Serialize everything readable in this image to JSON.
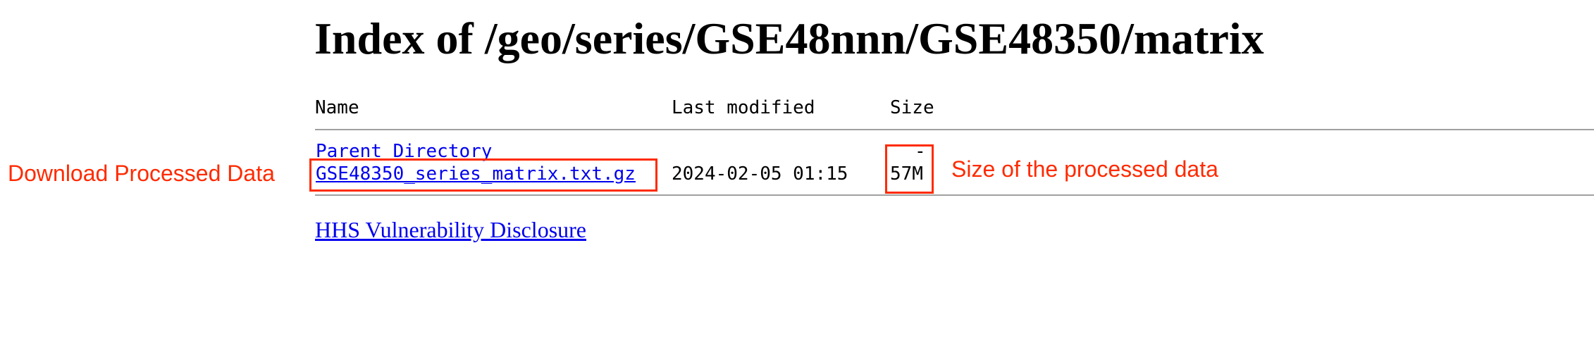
{
  "page": {
    "title": "Index of /geo/series/GSE48nnn/GSE48350/matrix"
  },
  "table": {
    "headers": {
      "name": "Name",
      "last_modified": "Last modified",
      "size": "Size"
    },
    "rows": [
      {
        "name": "Parent Directory",
        "last_modified": "",
        "size": "-"
      },
      {
        "name": "GSE48350_series_matrix.txt.gz",
        "last_modified": "2024-02-05 01:15",
        "size": "57M"
      }
    ]
  },
  "footer": {
    "link_text": "HHS Vulnerability Disclosure"
  },
  "annotations": {
    "left_label": "Download Processed Data",
    "right_label": "Size of the processed data",
    "color": "#ff2a00"
  },
  "colors": {
    "link": "#0000ee",
    "divider": "#a0a0a0"
  }
}
